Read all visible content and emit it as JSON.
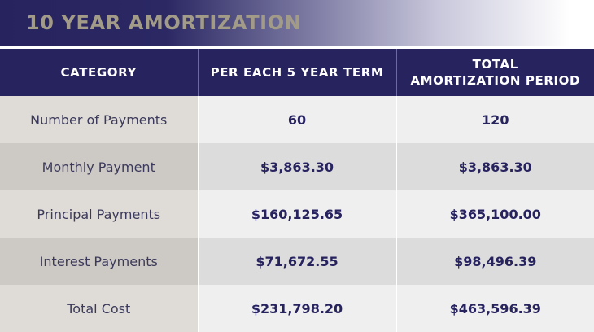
{
  "title": "10 YEAR AMORTIZATION",
  "table": {
    "headers": {
      "category": "CATEGORY",
      "term": "PER EACH 5 YEAR TERM",
      "total_line1": "TOTAL",
      "total_line2": "AMORTIZATION PERIOD"
    },
    "rows": [
      {
        "category": "Number of Payments",
        "term": "60",
        "total": "120"
      },
      {
        "category": "Monthly Payment",
        "term": "$3,863.30",
        "total": "$3,863.30"
      },
      {
        "category": "Principal Payments",
        "term": "$160,125.65",
        "total": "$365,100.00"
      },
      {
        "category": "Interest Payments",
        "term": "$71,672.55",
        "total": "$98,496.39"
      },
      {
        "category": "Total Cost",
        "term": "$231,798.20",
        "total": "$463,596.39"
      }
    ]
  },
  "colors": {
    "header_navy": "#27235f",
    "title_text": "#a29b88",
    "value_text": "#27235f",
    "category_text": "#3c3a5c"
  }
}
